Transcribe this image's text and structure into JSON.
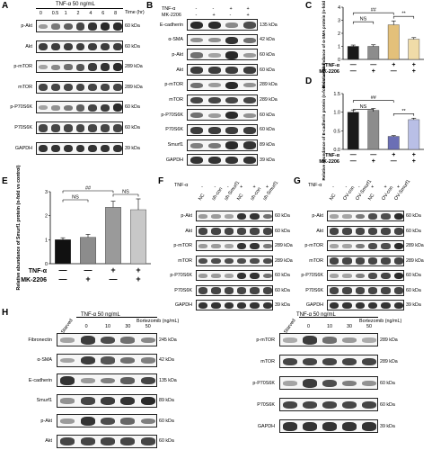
{
  "panels": {
    "A": "A",
    "B": "B",
    "C": "C",
    "D": "D",
    "E": "E",
    "F": "F",
    "G": "G",
    "H": "H"
  },
  "A": {
    "title": "TNF-α 50 ng/mL",
    "time_label": "Time (hr)",
    "times": [
      "0",
      "0.5",
      "1",
      "2",
      "4",
      "6",
      "8"
    ],
    "rows": [
      {
        "label": "p-Akt",
        "kda": "60 kDa",
        "levels": [
          0.35,
          0.55,
          0.7,
          0.85,
          0.95,
          1.0,
          1.0
        ]
      },
      {
        "label": "Akt",
        "kda": "60 kDa",
        "levels": [
          0.9,
          0.9,
          0.9,
          0.9,
          0.9,
          0.9,
          0.9
        ]
      },
      {
        "label": "p-mTOR",
        "kda": "289 kDa",
        "levels": [
          0.3,
          0.45,
          0.6,
          0.75,
          0.9,
          0.95,
          1.0
        ]
      },
      {
        "label": "mTOR",
        "kda": "289 kDa",
        "levels": [
          0.85,
          0.85,
          0.85,
          0.85,
          0.85,
          0.85,
          0.85
        ]
      },
      {
        "label": "p-P70S6K",
        "kda": "60 kDa",
        "levels": [
          0.3,
          0.4,
          0.55,
          0.7,
          0.85,
          0.9,
          1.0
        ]
      },
      {
        "label": "P70S6K",
        "kda": "60 kDa",
        "levels": [
          0.85,
          0.85,
          0.85,
          0.85,
          0.85,
          0.85,
          0.85
        ]
      },
      {
        "label": "GAPDH",
        "kda": "39 kDa",
        "levels": [
          0.95,
          0.95,
          0.95,
          0.95,
          0.95,
          0.95,
          0.95
        ]
      }
    ]
  },
  "B": {
    "cond1": "TNF-α",
    "cond2": "MK-2206",
    "signs1": [
      "-",
      "-",
      "+",
      "+"
    ],
    "signs2": [
      "-",
      "+",
      "-",
      "+"
    ],
    "rows": [
      {
        "label": "E-cadherin",
        "kda": "135 kDa",
        "levels": [
          1.0,
          1.0,
          0.45,
          0.8
        ]
      },
      {
        "label": "α-SMA",
        "kda": "42 kDa",
        "levels": [
          0.4,
          0.4,
          0.95,
          0.6
        ]
      },
      {
        "label": "p-Akt",
        "kda": "60 kDa",
        "levels": [
          0.6,
          0.3,
          1.0,
          0.35
        ]
      },
      {
        "label": "Akt",
        "kda": "60 kDa",
        "levels": [
          0.9,
          0.9,
          0.9,
          0.9
        ]
      },
      {
        "label": "p-mTOR",
        "kda": "289 kDa",
        "levels": [
          0.6,
          0.35,
          1.0,
          0.4
        ]
      },
      {
        "label": "mTOR",
        "kda": "289 kDa",
        "levels": [
          0.85,
          0.85,
          0.85,
          0.85
        ]
      },
      {
        "label": "p-P70S6K",
        "kda": "60 kDa",
        "levels": [
          0.6,
          0.35,
          1.0,
          0.4
        ]
      },
      {
        "label": "P70S6K",
        "kda": "60 kDa",
        "levels": [
          0.9,
          0.9,
          0.9,
          0.9
        ]
      },
      {
        "label": "Smurf1",
        "kda": "89 kDa",
        "levels": [
          0.5,
          0.55,
          1.0,
          0.95
        ]
      },
      {
        "label": "GAPDH",
        "kda": "39 kDa",
        "levels": [
          0.95,
          0.95,
          0.95,
          0.95
        ]
      }
    ]
  },
  "chart_data": [
    {
      "type": "bar",
      "panel": "C",
      "ylabel": "Relative abundance of α-SMA protein (n-fold vs control)",
      "ylim": [
        0,
        4
      ],
      "yticks": [
        "0",
        "1",
        "2",
        "3",
        "4"
      ],
      "values": [
        1.0,
        1.0,
        2.65,
        1.55
      ],
      "errors": [
        0.1,
        0.12,
        0.3,
        0.12
      ],
      "colors": [
        "#1a1a1a",
        "#8c8c8c",
        "#e3c07a",
        "#f0dca8"
      ],
      "row1_label": "TNF-α",
      "row2_label": "MK-2206",
      "row1": [
        "—",
        "—",
        "+",
        "+"
      ],
      "row2": [
        "—",
        "+",
        "—",
        "+"
      ],
      "annotations": [
        {
          "from": 0,
          "to": 1,
          "text": "NS"
        },
        {
          "from": 0,
          "to": 2,
          "text": "##"
        },
        {
          "from": 2,
          "to": 3,
          "text": "**"
        }
      ]
    },
    {
      "type": "bar",
      "panel": "D",
      "ylabel": "Relative abundance of E-cadherin protein (n-fold vs control)",
      "ylim": [
        0,
        1.5
      ],
      "yticks": [
        "0.0",
        "0.5",
        "1.0",
        "1.5"
      ],
      "values": [
        1.0,
        1.05,
        0.35,
        0.8
      ],
      "errors": [
        0.06,
        0.05,
        0.02,
        0.04
      ],
      "colors": [
        "#1a1a1a",
        "#8c8c8c",
        "#6b6fb5",
        "#b9bfe6"
      ],
      "row1_label": "TNF-α",
      "row2_label": "MK-2206",
      "row1": [
        "—",
        "—",
        "+",
        "+"
      ],
      "row2": [
        "—",
        "+",
        "—",
        "+"
      ],
      "annotations": [
        {
          "from": 0,
          "to": 1,
          "text": "NS"
        },
        {
          "from": 0,
          "to": 2,
          "text": "##"
        },
        {
          "from": 2,
          "to": 3,
          "text": "**"
        }
      ]
    },
    {
      "type": "bar",
      "panel": "E",
      "ylabel": "Relative abundance of Smurf1 protein (n-fold vs control)",
      "ylim": [
        0,
        3
      ],
      "yticks": [
        "0",
        "1",
        "2",
        "3"
      ],
      "values": [
        1.0,
        1.1,
        2.35,
        2.25
      ],
      "errors": [
        0.08,
        0.12,
        0.25,
        0.45
      ],
      "colors": [
        "#111111",
        "#8c8c8c",
        "#9a9a9a",
        "#c8c8c8"
      ],
      "row1_label": "TNF-α",
      "row2_label": "MK-2206",
      "row1": [
        "—",
        "—",
        "+",
        "+"
      ],
      "row2": [
        "—",
        "+",
        "—",
        "+"
      ],
      "annotations": [
        {
          "from": 0,
          "to": 1,
          "text": "NS"
        },
        {
          "from": 0,
          "to": 2,
          "text": "##"
        },
        {
          "from": 2,
          "to": 3,
          "text": "NS"
        }
      ]
    }
  ],
  "F": {
    "cond": "TNF-α",
    "lanes": [
      "NC",
      "sh-con",
      "sh-Smurf1",
      "NC",
      "sh-con",
      "sh-Smurf1"
    ],
    "signs": [
      "-",
      "-",
      "-",
      "+",
      "+",
      "+"
    ],
    "rows": [
      {
        "label": "p-Akt",
        "kda": "60 kDa",
        "levels": [
          0.35,
          0.35,
          0.3,
          0.95,
          0.95,
          0.6
        ]
      },
      {
        "label": "Akt",
        "kda": "60 kDa",
        "levels": [
          0.85,
          0.85,
          0.85,
          0.85,
          0.85,
          0.85
        ]
      },
      {
        "label": "p-mTOR",
        "kda": "289 kDa",
        "levels": [
          0.35,
          0.35,
          0.3,
          0.95,
          0.95,
          0.55
        ]
      },
      {
        "label": "mTOR",
        "kda": "289 kDa",
        "levels": [
          0.8,
          0.8,
          0.8,
          0.8,
          0.8,
          0.8
        ]
      },
      {
        "label": "p-P70S6K",
        "kda": "60 kDa",
        "levels": [
          0.35,
          0.35,
          0.3,
          0.95,
          0.95,
          0.6
        ]
      },
      {
        "label": "P70S6K",
        "kda": "60 kDa",
        "levels": [
          0.85,
          0.85,
          0.85,
          0.85,
          0.85,
          0.85
        ]
      },
      {
        "label": "GAPDH",
        "kda": "39 kDa",
        "levels": [
          0.95,
          0.95,
          0.95,
          0.95,
          0.95,
          0.95
        ]
      }
    ]
  },
  "G": {
    "cond": "TNF-α",
    "lanes": [
      "NC",
      "OV-con",
      "OV-Smurf1",
      "NC",
      "OV-con",
      "OV-Smurf1"
    ],
    "signs": [
      "-",
      "-",
      "-",
      "+",
      "+",
      "+"
    ],
    "rows": [
      {
        "label": "p-Akt",
        "kda": "60 kDa",
        "levels": [
          0.3,
          0.3,
          0.55,
          0.8,
          0.8,
          1.0
        ]
      },
      {
        "label": "Akt",
        "kda": "60 kDa",
        "levels": [
          0.85,
          0.85,
          0.85,
          0.85,
          0.85,
          0.85
        ]
      },
      {
        "label": "p-mTOR",
        "kda": "289 kDa",
        "levels": [
          0.3,
          0.3,
          0.55,
          0.8,
          0.8,
          1.0
        ]
      },
      {
        "label": "mTOR",
        "kda": "289 kDa",
        "levels": [
          0.85,
          0.85,
          0.85,
          0.85,
          0.85,
          0.85
        ]
      },
      {
        "label": "p-P70S6K",
        "kda": "60 kDa",
        "levels": [
          0.3,
          0.3,
          0.5,
          0.8,
          0.85,
          1.0
        ]
      },
      {
        "label": "P70S6K",
        "kda": "60 kDa",
        "levels": [
          0.85,
          0.85,
          0.85,
          0.85,
          0.85,
          0.85
        ]
      },
      {
        "label": "GAPDH",
        "kda": "39 kDa",
        "levels": [
          0.95,
          0.95,
          0.95,
          0.95,
          0.95,
          0.95
        ]
      }
    ]
  },
  "H1": {
    "title": "TNF-α 50 ng/mL",
    "bort": "Bortezomib (ng/mL)",
    "lanes": [
      "Starved",
      "0",
      "10",
      "30",
      "50"
    ],
    "rows": [
      {
        "label": "Fibronectin",
        "kda": "245 kDa",
        "levels": [
          0.3,
          0.9,
          0.8,
          0.6,
          0.45
        ]
      },
      {
        "label": "α-SMA",
        "kda": "42 kDa",
        "levels": [
          0.3,
          0.9,
          0.75,
          0.6,
          0.5
        ]
      },
      {
        "label": "E-cadherin",
        "kda": "135 kDa",
        "levels": [
          0.95,
          0.35,
          0.5,
          0.7,
          0.85
        ]
      },
      {
        "label": "Smurf1",
        "kda": "89 kDa",
        "levels": [
          0.4,
          0.85,
          0.9,
          0.95,
          1.0
        ]
      },
      {
        "label": "p-Akt",
        "kda": "60 kDa",
        "levels": [
          0.35,
          0.95,
          0.8,
          0.65,
          0.5
        ]
      },
      {
        "label": "Akt",
        "kda": "60 kDa",
        "levels": [
          0.85,
          0.85,
          0.85,
          0.85,
          0.85
        ]
      }
    ]
  },
  "H2": {
    "title": "TNF-α 50 ng/mL",
    "bort": "Bortezomib (ng/mL)",
    "lanes": [
      "Starved",
      "0",
      "10",
      "30",
      "50"
    ],
    "rows": [
      {
        "label": "p-mTOR",
        "kda": "289 kDa",
        "levels": [
          0.25,
          0.9,
          0.6,
          0.35,
          0.25
        ]
      },
      {
        "label": "mTOR",
        "kda": "289 kDa",
        "levels": [
          0.85,
          0.85,
          0.85,
          0.85,
          0.85
        ]
      },
      {
        "label": "p-P70S6K",
        "kda": "60 kDa",
        "levels": [
          0.3,
          0.9,
          0.8,
          0.5,
          0.4
        ]
      },
      {
        "label": "P70S6K",
        "kda": "60 kDa",
        "levels": [
          0.85,
          0.85,
          0.85,
          0.85,
          0.85
        ]
      },
      {
        "label": "GAPDH",
        "kda": "39 kDa",
        "levels": [
          0.95,
          0.95,
          0.95,
          0.95,
          0.95
        ]
      }
    ]
  }
}
